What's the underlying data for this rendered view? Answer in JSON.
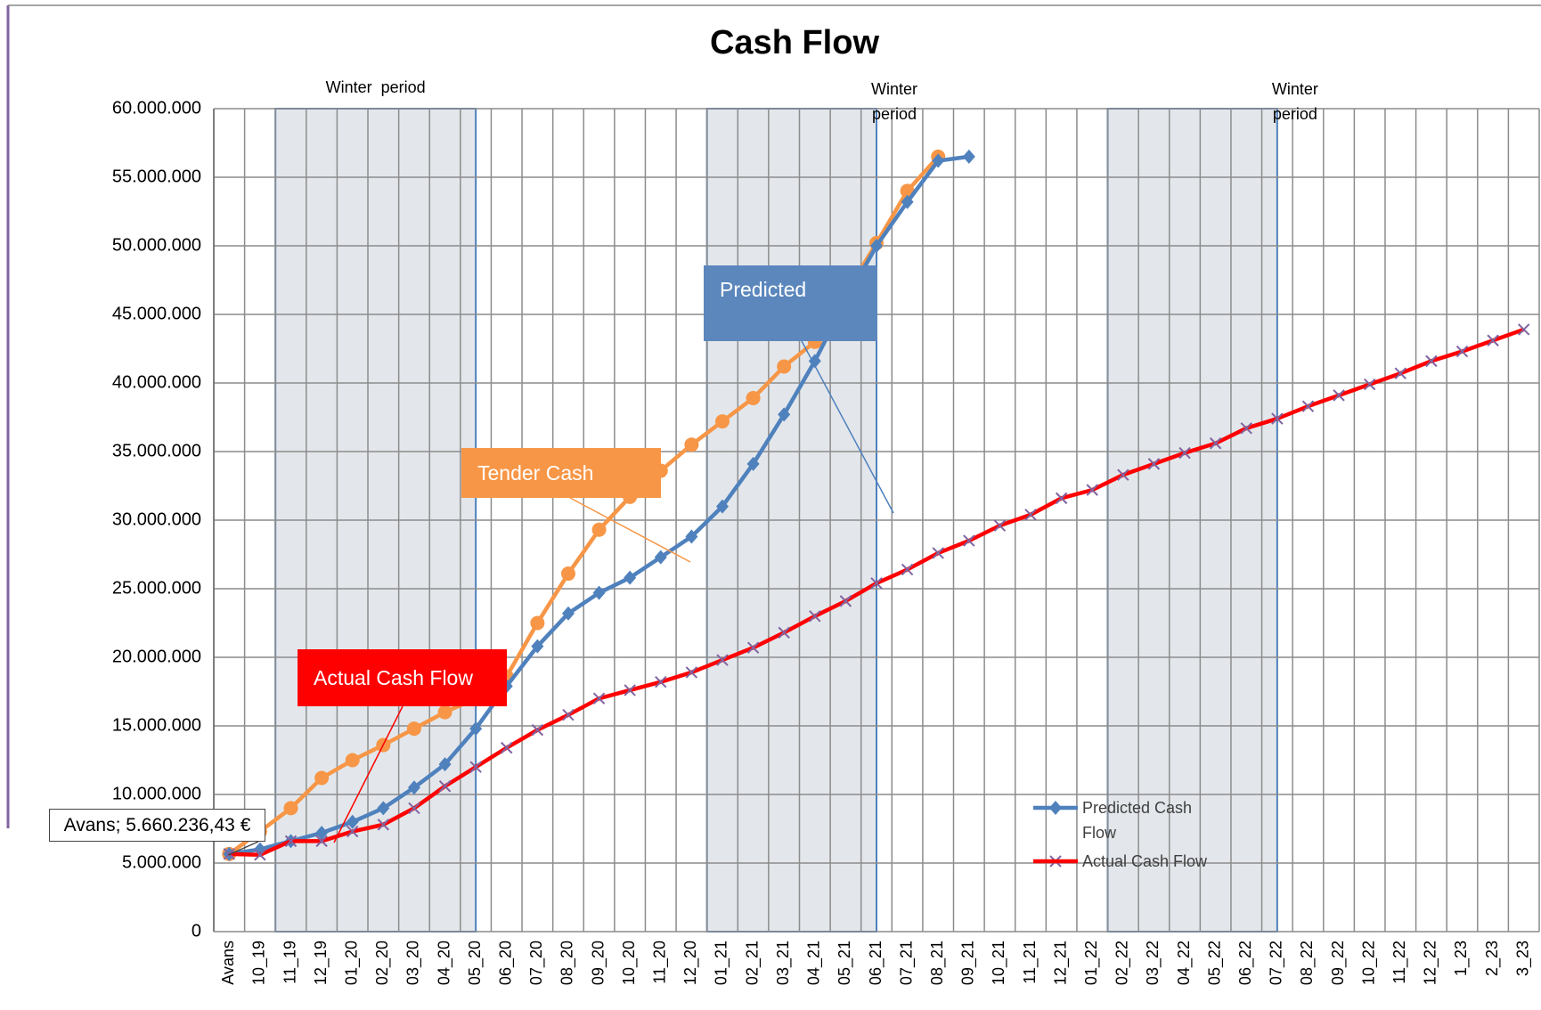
{
  "chart_data": {
    "type": "line",
    "title": "Cash Flow",
    "categories": [
      "Avans",
      "10_19",
      "11_19",
      "12_19",
      "01_20",
      "02_20",
      "03_20",
      "04_20",
      "05_20",
      "06_20",
      "07_20",
      "08_20",
      "09_20",
      "10_20",
      "11_20",
      "12_20",
      "01_21",
      "02_21",
      "03_21",
      "04_21",
      "05_21",
      "06_21",
      "07_21",
      "08_21",
      "09_21",
      "10_21",
      "11_21",
      "12_21",
      "01_22",
      "02_22",
      "03_22",
      "04_22",
      "05_22",
      "06_22",
      "07_22",
      "08_22",
      "09_22",
      "10_22",
      "11_22",
      "12_22",
      "1_23",
      "2_23",
      "3_23"
    ],
    "series": [
      {
        "color": "#f79646",
        "marker": "circle",
        "values": [
          5660236.43,
          7300000,
          9000000,
          11200000,
          12500000,
          13600000,
          14800000,
          16000000,
          17000000,
          18600000,
          22500000,
          26100000,
          29300000,
          31700000,
          33600000,
          35500000,
          37200000,
          38900000,
          41200000,
          43000000,
          46500000,
          50200000,
          54000000,
          56500000,
          null,
          null,
          null,
          null,
          null,
          null,
          null,
          null,
          null,
          null,
          null,
          null,
          null,
          null,
          null,
          null,
          null,
          null,
          null
        ]
      },
      {
        "name": "Predicted Cash Flow",
        "color": "#4f81bd",
        "marker": "diamond",
        "values": [
          5660236.43,
          6000000,
          6600000,
          7200000,
          8000000,
          9000000,
          10500000,
          12200000,
          14800000,
          17900000,
          20800000,
          23200000,
          24700000,
          25800000,
          27300000,
          28800000,
          31000000,
          34100000,
          37700000,
          41600000,
          46000000,
          50000000,
          53200000,
          56200000,
          56500000,
          null,
          null,
          null,
          null,
          null,
          null,
          null,
          null,
          null,
          null,
          null,
          null,
          null,
          null,
          null,
          null,
          null,
          null
        ]
      },
      {
        "name": "Actual Cash Flow",
        "color": "#ff0000",
        "marker": "x",
        "marker_color": "#8064a2",
        "values": [
          5660236.43,
          5600000,
          6600000,
          6600000,
          7300000,
          7800000,
          9000000,
          10600000,
          12000000,
          13400000,
          14700000,
          15800000,
          17000000,
          17600000,
          18200000,
          18900000,
          19800000,
          20700000,
          21800000,
          23000000,
          24100000,
          25400000,
          26400000,
          27600000,
          28500000,
          29600000,
          30400000,
          31600000,
          32200000,
          33300000,
          34100000,
          34900000,
          35600000,
          36700000,
          37400000,
          38300000,
          39100000,
          39900000,
          40700000,
          41600000,
          42300000,
          43100000,
          43900000
        ]
      }
    ],
    "ylim": [
      0,
      60000000
    ],
    "yticks": [
      0,
      {
        "value": 5000000,
        "label": "5.000.000"
      },
      {
        "value": 10000000,
        "label": "10.000.000"
      },
      {
        "value": 15000000,
        "label": "15.000.000"
      },
      {
        "value": 20000000,
        "label": "20.000.000"
      },
      {
        "value": 25000000,
        "label": "25.000.000"
      },
      {
        "value": 30000000,
        "label": "30.000.000"
      },
      {
        "value": 35000000,
        "label": "35.000.000"
      },
      {
        "value": 40000000,
        "label": "40.000.000"
      },
      {
        "value": 45000000,
        "label": "45.000.000"
      },
      {
        "value": 50000000,
        "label": "50.000.000"
      },
      {
        "value": 55000000,
        "label": "55.000.000"
      },
      {
        "value": 60000000,
        "label": "60.000.000"
      }
    ],
    "grid": true,
    "shaded_periods": [
      {
        "label": "Winter  period",
        "from": "11_19",
        "to": "05_20"
      },
      {
        "label": "Winter period",
        "from": "01_21",
        "to": "06_21"
      },
      {
        "label": "Winter period",
        "from": "02_22",
        "to": "07_22"
      }
    ],
    "annotations": [
      "Avans; 5.660.236,43 €",
      "Predicted",
      "Tender Cash",
      "Actual Cash Flow"
    ]
  }
}
